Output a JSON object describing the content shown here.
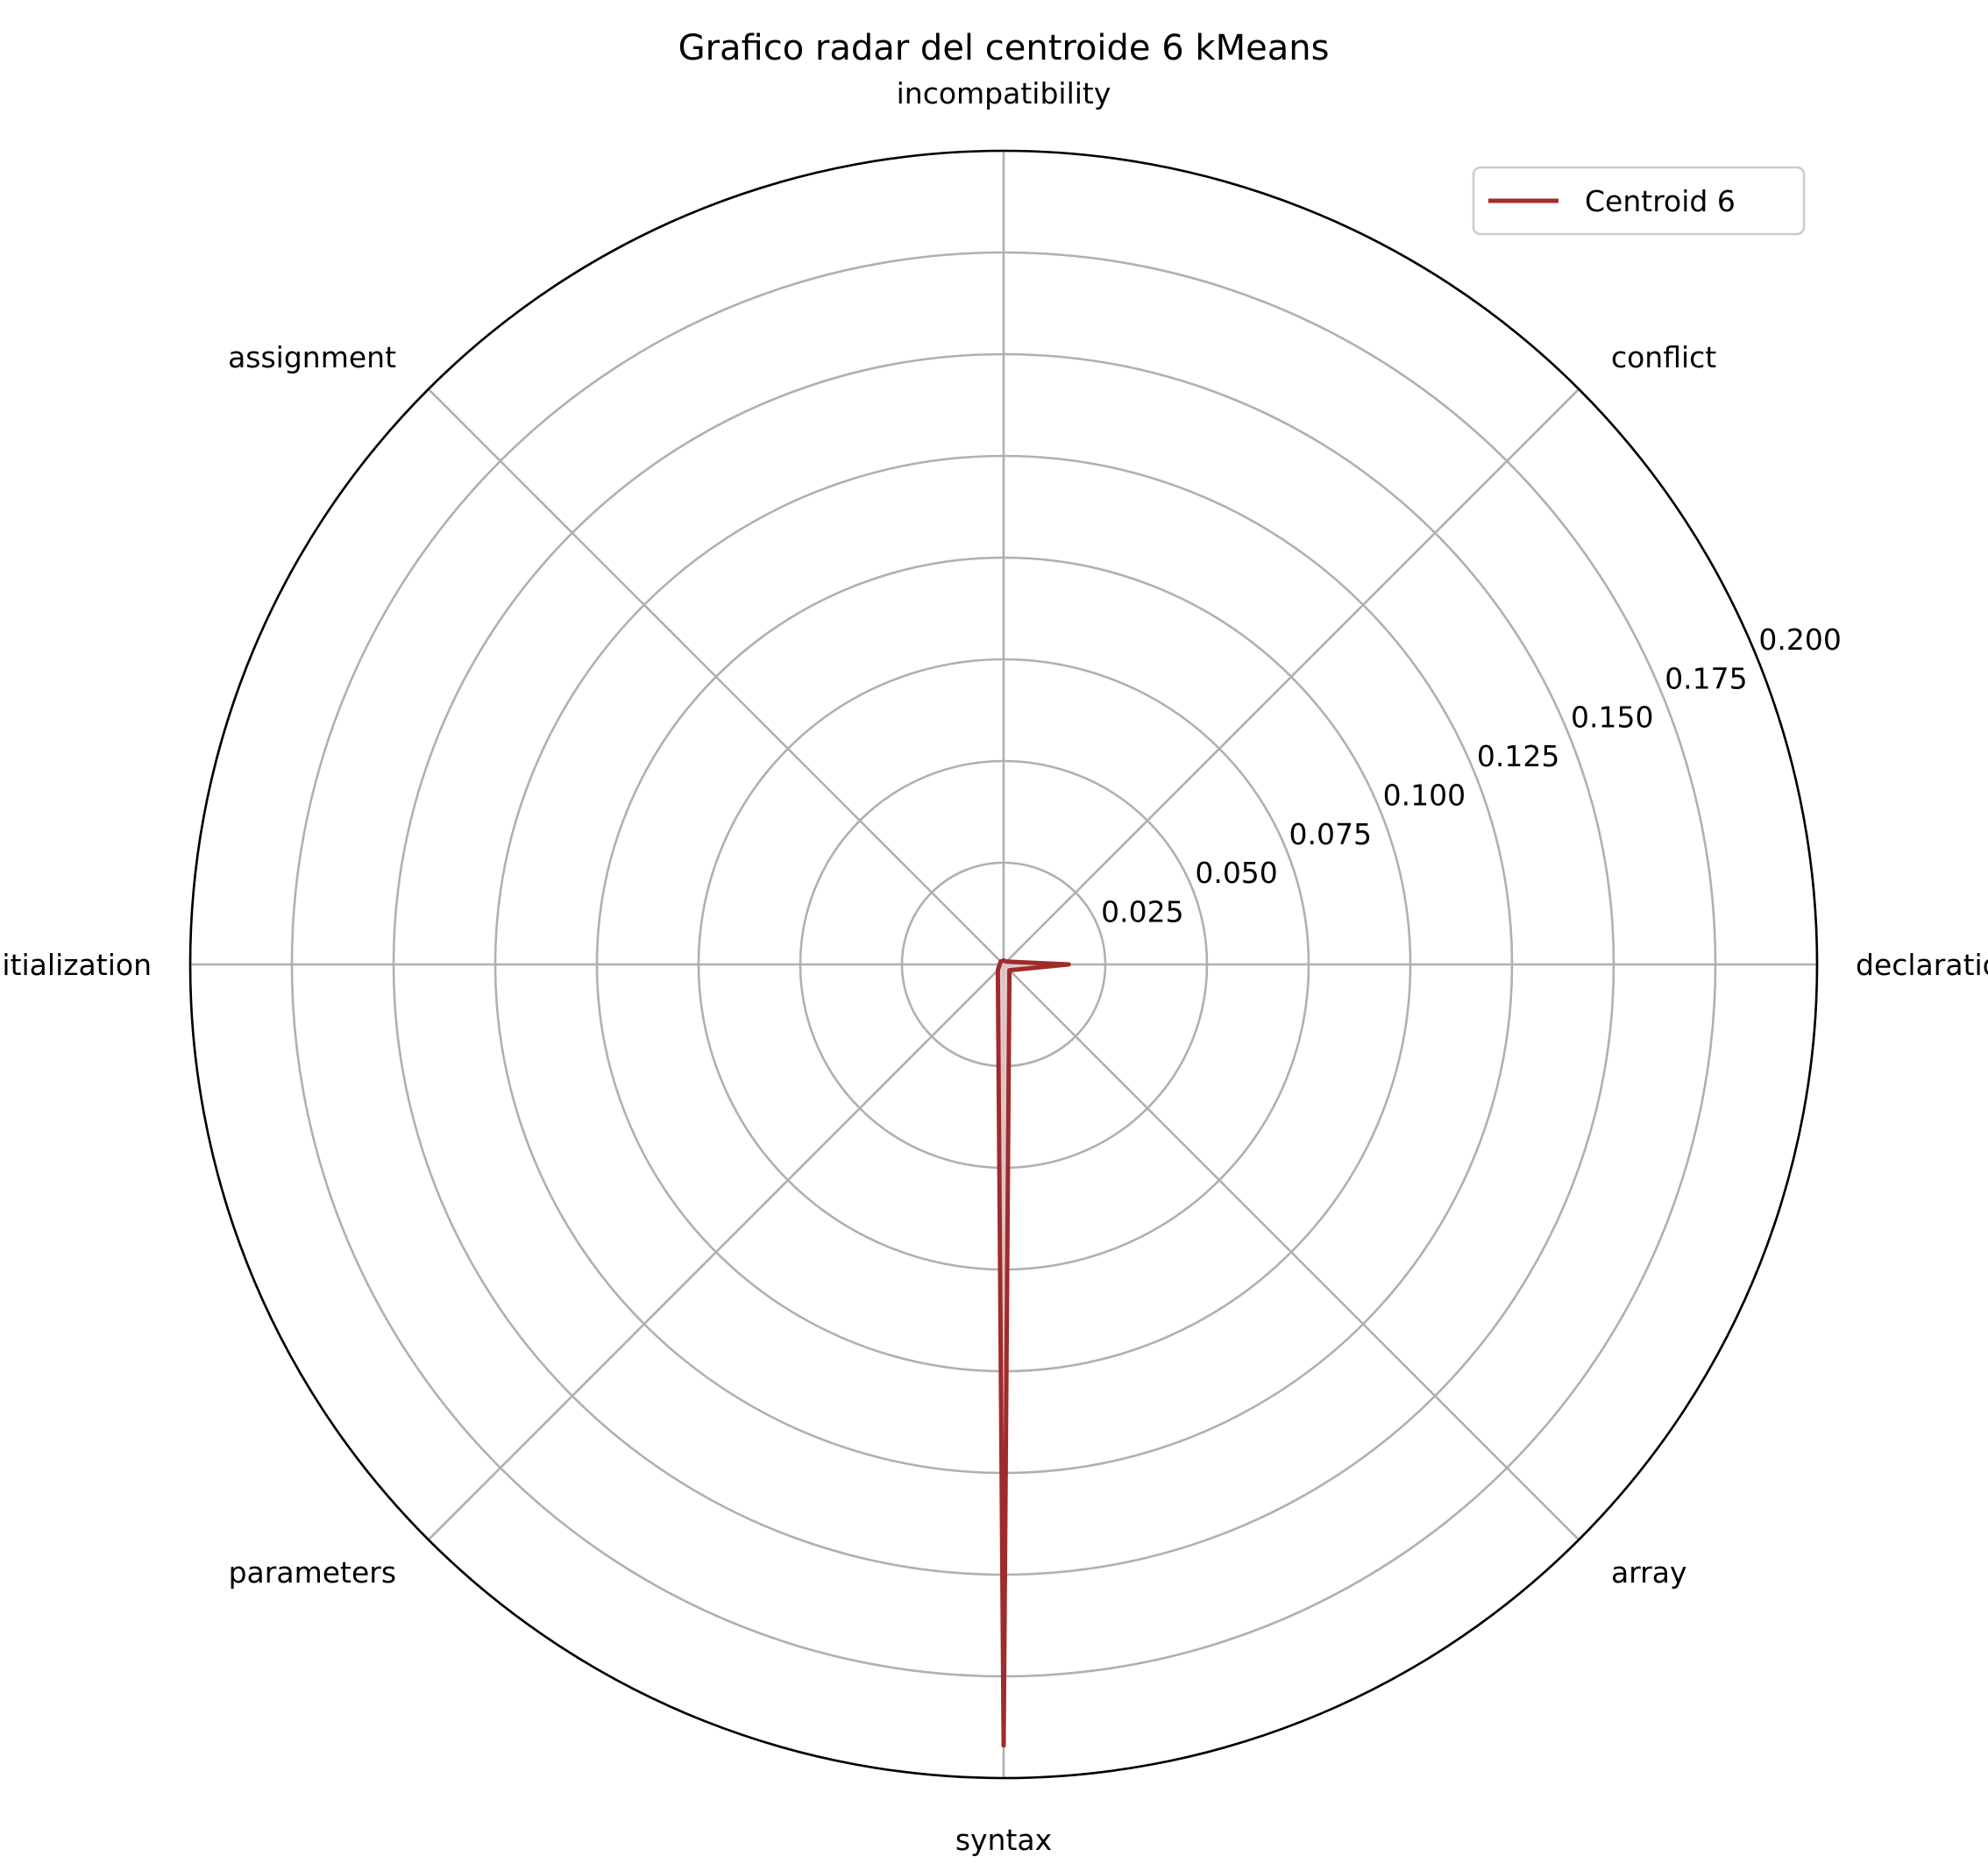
{
  "chart_data": {
    "type": "radar",
    "title": "Grafico radar del centroide 6 kMeans",
    "categories": [
      "declaration",
      "conflict",
      "incompatibility",
      "assignment",
      "initialization",
      "parameters",
      "syntax",
      "array"
    ],
    "series": [
      {
        "name": "Centroid 6",
        "values": [
          0.016,
          0.001,
          0.001,
          0.001,
          0.001,
          0.002,
          0.192,
          0.002
        ],
        "color": "#a02b2b",
        "fill_color": "#e2c4c4"
      }
    ],
    "rlim": [
      0,
      0.2
    ],
    "r_ticks": [
      "0.025",
      "0.050",
      "0.075",
      "0.100",
      "0.125",
      "0.150",
      "0.175",
      "0.200"
    ],
    "r_tick_values": [
      0.025,
      0.05,
      0.075,
      0.1,
      0.125,
      0.15,
      0.175,
      0.2
    ],
    "grid": true,
    "legend_position": "top-right"
  }
}
